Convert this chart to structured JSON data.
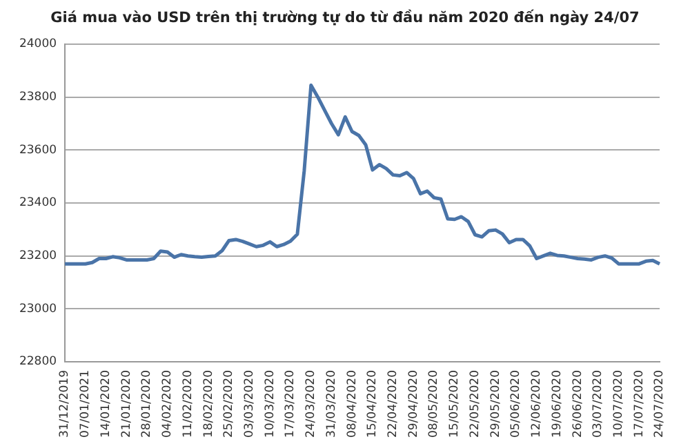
{
  "chart_data": {
    "type": "line",
    "title": "Giá mua vào USD trên thị trường tự do từ đầu năm 2020 đến ngày 24/07",
    "categories": [
      "31/12/2019",
      null,
      null,
      "07/01/2021",
      null,
      null,
      "14/01/2020",
      null,
      null,
      "21/01/2020",
      null,
      null,
      "28/01/2020",
      null,
      null,
      "04/02/2020",
      null,
      null,
      "11/02/2020",
      null,
      null,
      "18/02/2020",
      null,
      null,
      "25/02/2020",
      null,
      null,
      "03/03/2020",
      null,
      null,
      "10/03/2020",
      null,
      null,
      "17/03/2020",
      null,
      null,
      "24/03/2020",
      null,
      null,
      "31/03/2020",
      null,
      null,
      "08/04/2020",
      null,
      null,
      "15/04/2020",
      null,
      null,
      "22/04/2020",
      null,
      null,
      "29/04/2020",
      null,
      null,
      "08/05/2020",
      null,
      null,
      "15/05/2020",
      null,
      null,
      "22/05/2020",
      null,
      null,
      "29/05/2020",
      null,
      null,
      "05/06/2020",
      null,
      null,
      "12/06/2020",
      null,
      null,
      "19/06/2020",
      null,
      null,
      "26/06/2020",
      null,
      null,
      "03/07/2020",
      null,
      null,
      "10/07/2020",
      null,
      null,
      "17/07/2020",
      null,
      null,
      "24/07/2020"
    ],
    "series": [
      {
        "color": "#4a74a8",
        "values": [
          23170,
          23170,
          23170,
          23170,
          23175,
          23190,
          23190,
          23197,
          23193,
          23185,
          23185,
          23185,
          23185,
          23190,
          23218,
          23215,
          23195,
          23205,
          23200,
          23197,
          23195,
          23198,
          23200,
          23220,
          23258,
          23262,
          23255,
          23245,
          23235,
          23240,
          23253,
          23235,
          23243,
          23256,
          23282,
          23520,
          23845,
          23800,
          23750,
          23700,
          23658,
          23725,
          23670,
          23655,
          23620,
          23525,
          23545,
          23530,
          23506,
          23503,
          23515,
          23492,
          23435,
          23445,
          23420,
          23415,
          23340,
          23338,
          23348,
          23330,
          23280,
          23272,
          23295,
          23298,
          23283,
          23250,
          23262,
          23262,
          23238,
          23190,
          23200,
          23210,
          23202,
          23200,
          23195,
          23190,
          23188,
          23185,
          23195,
          23200,
          23192,
          23170,
          23170,
          23170,
          23170,
          23180,
          23183,
          23170
        ]
      }
    ],
    "ylim": [
      22800,
      24000
    ],
    "yticks": [
      22800,
      23000,
      23200,
      23400,
      23600,
      23800,
      24000
    ],
    "grid": "y",
    "legend": false,
    "marker": "none",
    "line_style": "solid"
  }
}
